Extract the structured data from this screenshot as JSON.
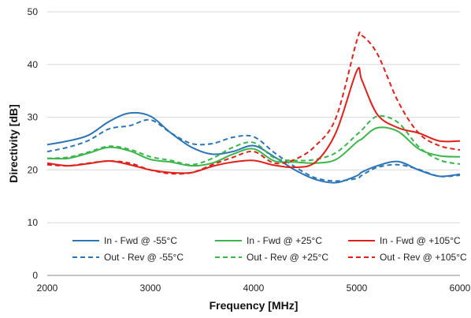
{
  "chart_data": {
    "type": "line",
    "xlabel": "Frequency [MHz]",
    "ylabel": "Directivity [dB]",
    "xlim": [
      2000,
      6000
    ],
    "ylim": [
      0,
      50
    ],
    "xticks": [
      "2000",
      "3000",
      "4000",
      "5000",
      "6000"
    ],
    "yticks": [
      "0",
      "10",
      "20",
      "30",
      "40",
      "50"
    ],
    "grid": "horizontal",
    "legend_position": "bottom",
    "x": [
      2000,
      2200,
      2400,
      2600,
      2800,
      3000,
      3200,
      3400,
      3600,
      3800,
      4000,
      4200,
      4400,
      4600,
      4800,
      5000,
      5050,
      5200,
      5400,
      5600,
      5800,
      6000
    ],
    "series": [
      {
        "name": "In - Fwd @ -55°C",
        "color": "#2e75b6",
        "dash": "solid",
        "values": [
          24.8,
          25.5,
          26.6,
          29.2,
          30.8,
          30.2,
          27.0,
          24.3,
          23.0,
          23.5,
          24.6,
          22.5,
          20.0,
          18.2,
          17.6,
          18.9,
          19.6,
          20.8,
          21.6,
          20.0,
          18.8,
          19.2
        ]
      },
      {
        "name": "Out - Rev @ -55°C",
        "color": "#2e75b6",
        "dash": "dashed",
        "values": [
          23.5,
          24.3,
          25.6,
          27.8,
          28.4,
          29.5,
          27.0,
          25.0,
          25.0,
          26.2,
          26.3,
          23.3,
          20.6,
          18.5,
          17.9,
          18.4,
          19.0,
          20.5,
          21.0,
          20.1,
          18.8,
          19.0
        ]
      },
      {
        "name": "In - Fwd @ +25°C",
        "color": "#3cb54a",
        "dash": "solid",
        "values": [
          22.2,
          22.2,
          23.2,
          24.3,
          23.6,
          22.0,
          21.5,
          20.8,
          21.3,
          23.0,
          24.0,
          21.7,
          21.5,
          21.3,
          22.0,
          25.3,
          25.9,
          28.0,
          27.3,
          24.0,
          22.7,
          22.5
        ]
      },
      {
        "name": "Out - Rev @ +25°C",
        "color": "#3cb54a",
        "dash": "dashed",
        "values": [
          22.2,
          22.4,
          23.4,
          24.5,
          23.9,
          22.5,
          21.8,
          21.0,
          22.2,
          24.3,
          25.2,
          22.3,
          21.8,
          22.0,
          23.3,
          26.7,
          27.6,
          30.2,
          29.0,
          24.4,
          21.9,
          21.1
        ]
      },
      {
        "name": "In - Fwd @ +105°C",
        "color": "#e0201b",
        "dash": "solid",
        "values": [
          21.3,
          20.8,
          21.2,
          21.7,
          21.0,
          20.0,
          19.5,
          19.5,
          20.7,
          21.5,
          21.8,
          20.9,
          20.5,
          21.5,
          27.2,
          38.8,
          37.0,
          30.5,
          28.0,
          27.0,
          25.5,
          25.5
        ]
      },
      {
        "name": "Out - Rev @ +105°C",
        "color": "#e0201b",
        "dash": "dashed",
        "values": [
          21.0,
          20.8,
          21.3,
          21.7,
          21.3,
          20.0,
          19.3,
          19.5,
          21.0,
          22.4,
          23.5,
          21.3,
          22.0,
          24.6,
          30.0,
          44.5,
          45.5,
          42.0,
          33.0,
          27.0,
          24.6,
          23.8
        ]
      }
    ]
  }
}
